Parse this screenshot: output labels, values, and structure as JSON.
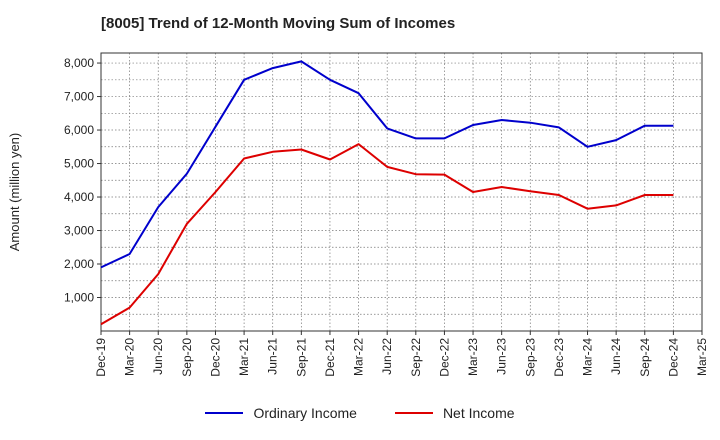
{
  "chart_data": {
    "type": "line",
    "title": "[8005]  Trend of 12-Month Moving Sum of Incomes",
    "xlabel": "",
    "ylabel": "Amount (million yen)",
    "ylim": [
      0,
      8300
    ],
    "yticks": [
      1000,
      2000,
      3000,
      4000,
      5000,
      6000,
      7000,
      8000
    ],
    "ytick_labels": [
      "1,000",
      "2,000",
      "3,000",
      "4,000",
      "5,000",
      "6,000",
      "7,000",
      "8,000"
    ],
    "categories": [
      "Dec-19",
      "Mar-20",
      "Jun-20",
      "Sep-20",
      "Dec-20",
      "Mar-21",
      "Jun-21",
      "Sep-21",
      "Dec-21",
      "Mar-22",
      "Jun-22",
      "Sep-22",
      "Dec-22",
      "Mar-23",
      "Jun-23",
      "Sep-23",
      "Dec-23",
      "Mar-24",
      "Jun-24",
      "Sep-24",
      "Dec-24",
      "Mar-25"
    ],
    "grid": true,
    "legend_position": "bottom-center",
    "series": [
      {
        "name": "Ordinary Income",
        "color": "#0000cc",
        "values": [
          1900,
          2300,
          3700,
          4700,
          6100,
          7500,
          7850,
          8050,
          7500,
          7100,
          6050,
          5750,
          5750,
          6150,
          6300,
          6220,
          6080,
          5500,
          5700,
          6130,
          6130,
          null
        ]
      },
      {
        "name": "Net Income",
        "color": "#dd0000",
        "values": [
          200,
          700,
          1700,
          3200,
          4150,
          5150,
          5350,
          5420,
          5120,
          5580,
          4900,
          4680,
          4670,
          4150,
          4300,
          4170,
          4060,
          3650,
          3750,
          4060,
          4060,
          null
        ]
      }
    ]
  }
}
